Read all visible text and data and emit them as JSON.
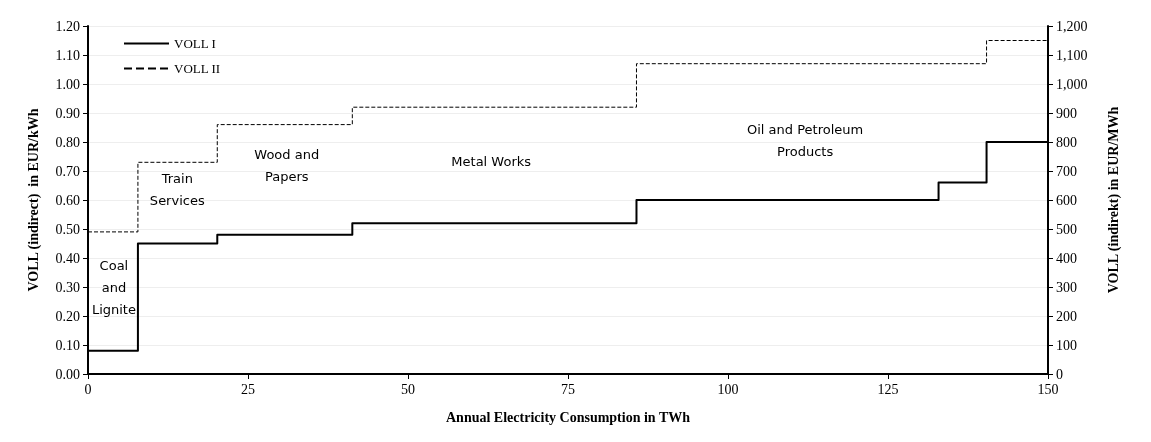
{
  "chart_data": {
    "type": "step",
    "xlabel": "Annual Electricity Consumption in TWh",
    "ylabel": "VOLL (indirect)  in EUR/kWh",
    "y2label": "VOLL (indirekt) in EUR/MWh",
    "x": [
      0,
      7.8,
      20.2,
      41.3,
      85.7,
      132.9,
      140.4,
      150
    ],
    "series": [
      {
        "name": "VOLL I",
        "color": "#000000",
        "line_style": "solid",
        "values": [
          0.08,
          0.45,
          0.48,
          0.52,
          0.6,
          0.66,
          0.8,
          0.8
        ]
      },
      {
        "name": "VOLL II",
        "color": "#000000",
        "line_style": "dashed",
        "values": [
          0.49,
          0.73,
          0.86,
          0.92,
          1.07,
          1.07,
          1.15,
          1.15
        ]
      }
    ],
    "xlim": [
      0,
      150
    ],
    "xticks": [
      0,
      25,
      50,
      75,
      100,
      125,
      150
    ],
    "ylim": [
      0,
      1.2
    ],
    "yticks": [
      {
        "value": 0,
        "label": "0.00"
      },
      {
        "value": 0.1,
        "label": "0.10"
      },
      {
        "value": 0.2,
        "label": "0.20"
      },
      {
        "value": 0.3,
        "label": "0.30"
      },
      {
        "value": 0.4,
        "label": "0.40"
      },
      {
        "value": 0.5,
        "label": "0.50"
      },
      {
        "value": 0.6,
        "label": "0.60"
      },
      {
        "value": 0.7,
        "label": "0.70"
      },
      {
        "value": 0.8,
        "label": "0.80"
      },
      {
        "value": 0.9,
        "label": "0.90"
      },
      {
        "value": 1,
        "label": "1.00"
      },
      {
        "value": 1.1,
        "label": "1.10"
      },
      {
        "value": 1.2,
        "label": "1.20"
      }
    ],
    "y2lim": [
      0,
      1200
    ],
    "y2ticks": [
      0,
      100,
      200,
      300,
      400,
      500,
      600,
      700,
      800,
      900,
      {
        "value": 1000,
        "label": "1,000"
      },
      {
        "value": 1100,
        "label": "1,100"
      },
      {
        "value": 1200,
        "label": "1,200"
      }
    ],
    "annotations": [
      "Coal\nand\nLignite",
      "Train\nServices",
      "Wood and\nPapers",
      "Metal Works",
      "Oil and Petroleum\nProducts"
    ],
    "grid": "y",
    "legend": "top left",
    "marker": "none"
  }
}
